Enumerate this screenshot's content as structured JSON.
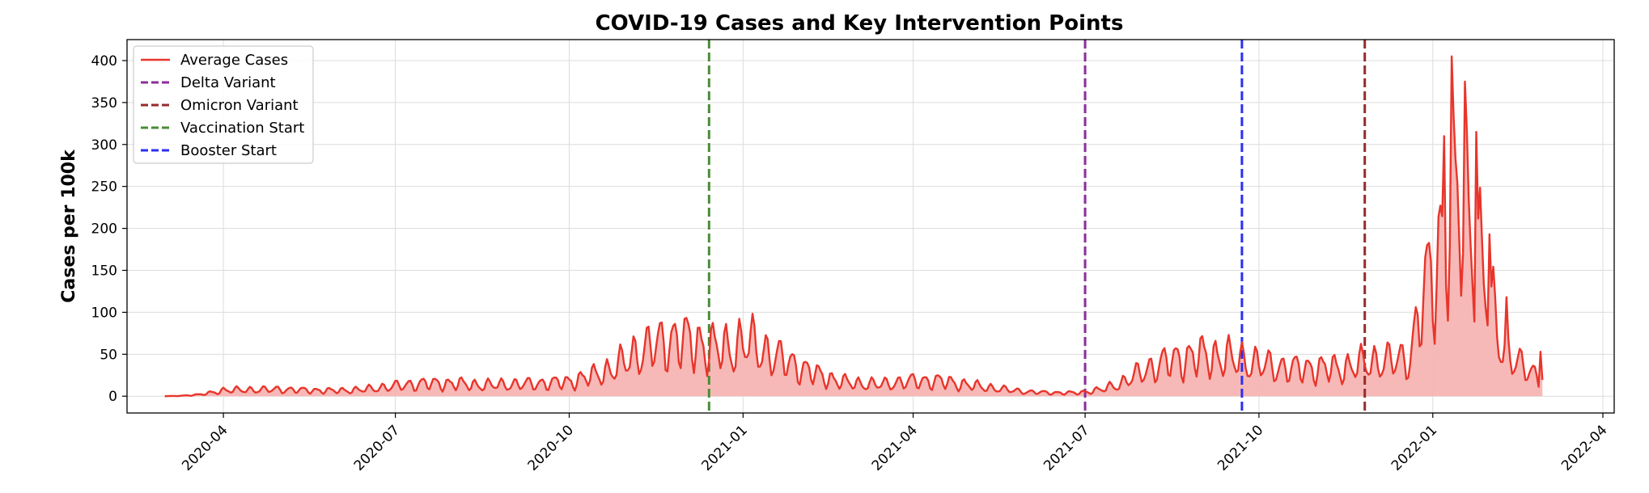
{
  "chart_data": {
    "type": "area",
    "title": "COVID-19 Cases and Key Intervention Points",
    "xlabel": "",
    "ylabel": "Cases per 100k",
    "xlim": [
      "2020-02-10",
      "2022-04-07"
    ],
    "ylim": [
      -20,
      425
    ],
    "y_ticks": [
      0,
      50,
      100,
      150,
      200,
      250,
      300,
      350,
      400
    ],
    "x_ticks": [
      "2020-04",
      "2020-07",
      "2020-10",
      "2021-01",
      "2021-04",
      "2021-07",
      "2021-10",
      "2022-01",
      "2022-04"
    ],
    "grid": true,
    "legend_position": "top-left",
    "line_color": "#e8352b",
    "fill_color": "#f5b5b3",
    "series": [
      {
        "name": "Average Cases",
        "points": [
          [
            "2020-03-01",
            0
          ],
          [
            "2020-03-10",
            0.5
          ],
          [
            "2020-03-20",
            2
          ],
          [
            "2020-03-28",
            5
          ],
          [
            "2020-04-01",
            7
          ],
          [
            "2020-04-15",
            7.5
          ],
          [
            "2020-05-01",
            8
          ],
          [
            "2020-05-15",
            7
          ],
          [
            "2020-06-01",
            6.5
          ],
          [
            "2020-06-15",
            8
          ],
          [
            "2020-07-01",
            12
          ],
          [
            "2020-07-15",
            15
          ],
          [
            "2020-08-01",
            15
          ],
          [
            "2020-08-15",
            13
          ],
          [
            "2020-09-01",
            14
          ],
          [
            "2020-09-15",
            15
          ],
          [
            "2020-10-01",
            17
          ],
          [
            "2020-10-15",
            25
          ],
          [
            "2020-10-25",
            33
          ],
          [
            "2020-11-05",
            50
          ],
          [
            "2020-11-15",
            60
          ],
          [
            "2020-11-28",
            68
          ],
          [
            "2020-12-08",
            62
          ],
          [
            "2020-12-15",
            58
          ],
          [
            "2020-12-25",
            55
          ],
          [
            "2021-01-03",
            65
          ],
          [
            "2021-01-10",
            55
          ],
          [
            "2021-01-20",
            45
          ],
          [
            "2021-02-01",
            33
          ],
          [
            "2021-02-10",
            25
          ],
          [
            "2021-02-20",
            18
          ],
          [
            "2021-03-01",
            15
          ],
          [
            "2021-03-15",
            14
          ],
          [
            "2021-04-01",
            18
          ],
          [
            "2021-04-15",
            18
          ],
          [
            "2021-05-01",
            13
          ],
          [
            "2021-05-15",
            9
          ],
          [
            "2021-06-01",
            5
          ],
          [
            "2021-06-15",
            4
          ],
          [
            "2021-06-28",
            4
          ],
          [
            "2021-07-10",
            8
          ],
          [
            "2021-07-20",
            15
          ],
          [
            "2021-08-01",
            30
          ],
          [
            "2021-08-15",
            42
          ],
          [
            "2021-09-01",
            48
          ],
          [
            "2021-09-15",
            45
          ],
          [
            "2021-10-01",
            38
          ],
          [
            "2021-10-15",
            33
          ],
          [
            "2021-11-01",
            33
          ],
          [
            "2021-11-15",
            33
          ],
          [
            "2021-11-28",
            40
          ],
          [
            "2021-12-10",
            42
          ],
          [
            "2021-12-20",
            45
          ],
          [
            "2021-12-26",
            110
          ],
          [
            "2022-01-03",
            160
          ],
          [
            "2022-01-10",
            220
          ],
          [
            "2022-01-17",
            230
          ],
          [
            "2022-01-24",
            180
          ],
          [
            "2022-01-31",
            110
          ],
          [
            "2022-02-07",
            60
          ],
          [
            "2022-02-14",
            40
          ],
          [
            "2022-02-21",
            30
          ],
          [
            "2022-02-28",
            22
          ]
        ],
        "highlights": [
          [
            "2022-01-07",
            310
          ],
          [
            "2022-01-11",
            405
          ],
          [
            "2022-01-18",
            375
          ],
          [
            "2022-01-24",
            315
          ],
          [
            "2022-01-31",
            193
          ],
          [
            "2022-02-09",
            118
          ],
          [
            "2022-02-27",
            53
          ]
        ]
      }
    ],
    "intervention_lines": [
      {
        "name": "Delta Variant",
        "date": "2021-07-01",
        "color": "#8b2e9a"
      },
      {
        "name": "Omicron Variant",
        "date": "2021-11-26",
        "color": "#952b2b"
      },
      {
        "name": "Vaccination Start",
        "date": "2020-12-14",
        "color": "#4a8c37"
      },
      {
        "name": "Booster Start",
        "date": "2021-09-22",
        "color": "#2b2ff0"
      }
    ]
  }
}
